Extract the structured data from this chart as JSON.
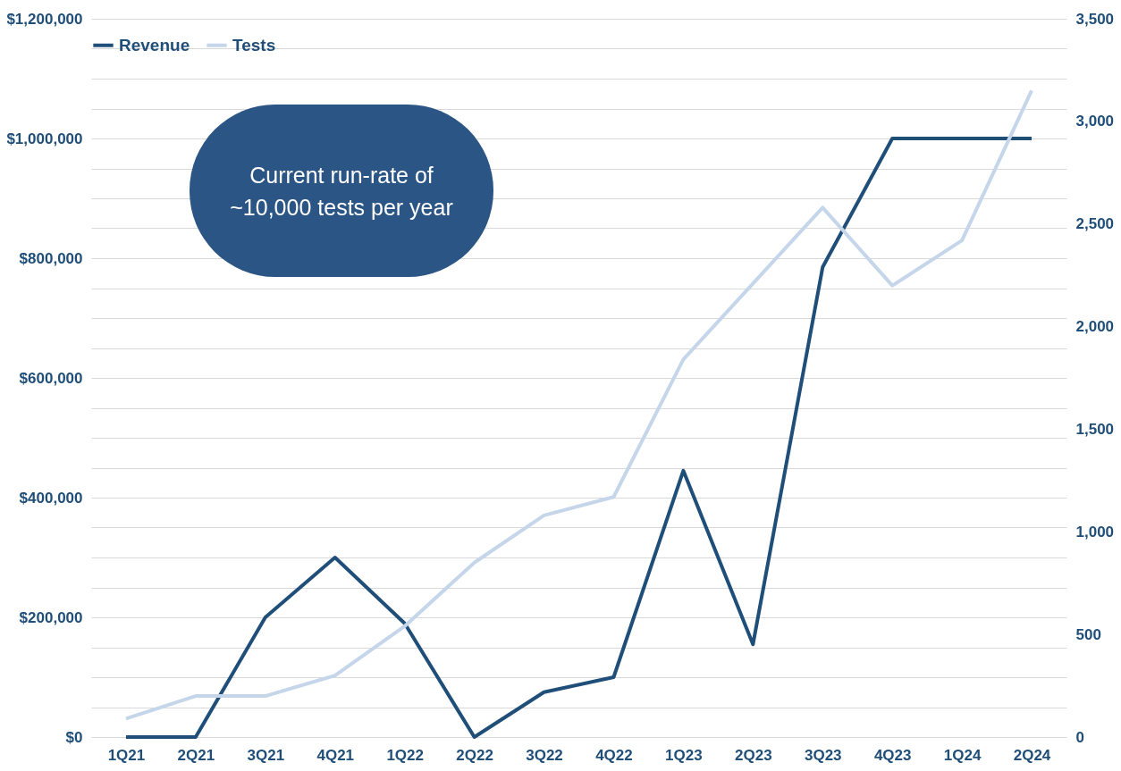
{
  "chart_data": {
    "type": "line",
    "categories": [
      "1Q21",
      "2Q21",
      "3Q21",
      "4Q21",
      "1Q22",
      "2Q22",
      "3Q22",
      "4Q22",
      "1Q23",
      "2Q23",
      "3Q23",
      "4Q23",
      "1Q24",
      "2Q24"
    ],
    "series": [
      {
        "name": "Revenue",
        "color": "#1f4e79",
        "values": [
          0,
          0,
          200000,
          300000,
          190000,
          0,
          75000,
          100000,
          445000,
          155000,
          785000,
          1000000,
          1000000,
          1000000
        ]
      },
      {
        "name": "Tests",
        "color": "#c5d5ea",
        "axis": "y2",
        "values": [
          90,
          200,
          200,
          300,
          540,
          850,
          1080,
          1170,
          1840,
          2210,
          2580,
          2200,
          2420,
          3150
        ]
      }
    ],
    "ylim": [
      0,
      1200000
    ],
    "yticks": [
      {
        "value": 0,
        "label": "$0"
      },
      {
        "value": 50000,
        "label": null
      },
      {
        "value": 100000,
        "label": null
      },
      {
        "value": 150000,
        "label": null
      },
      {
        "value": 200000,
        "label": "$200,000"
      },
      {
        "value": 250000,
        "label": null
      },
      {
        "value": 300000,
        "label": null
      },
      {
        "value": 350000,
        "label": null
      },
      {
        "value": 400000,
        "label": "$400,000"
      },
      {
        "value": 450000,
        "label": null
      },
      {
        "value": 500000,
        "label": null
      },
      {
        "value": 550000,
        "label": null
      },
      {
        "value": 600000,
        "label": "$600,000"
      },
      {
        "value": 650000,
        "label": null
      },
      {
        "value": 700000,
        "label": null
      },
      {
        "value": 750000,
        "label": null
      },
      {
        "value": 800000,
        "label": "$800,000"
      },
      {
        "value": 850000,
        "label": null
      },
      {
        "value": 900000,
        "label": null
      },
      {
        "value": 950000,
        "label": null
      },
      {
        "value": 1000000,
        "label": "$1,000,000"
      },
      {
        "value": 1050000,
        "label": null
      },
      {
        "value": 1100000,
        "label": null
      },
      {
        "value": 1150000,
        "label": null
      },
      {
        "value": 1200000,
        "label": "$1,200,000"
      }
    ],
    "y2lim": [
      0,
      3500
    ],
    "y2ticks": [
      0,
      {
        "value": 500,
        "label": "500"
      },
      {
        "value": 1000,
        "label": "1,000"
      },
      {
        "value": 1500,
        "label": "1,500"
      },
      {
        "value": 2000,
        "label": "2,000"
      },
      {
        "value": 2500,
        "label": "2,500"
      },
      {
        "value": 3000,
        "label": "3,000"
      },
      {
        "value": 3500,
        "label": "3,500"
      }
    ],
    "grid": "y",
    "legend": "top",
    "marker": "none",
    "line_style": "solid",
    "annotations": [
      "Current run-rate of\n~10,000 tests per year"
    ]
  }
}
